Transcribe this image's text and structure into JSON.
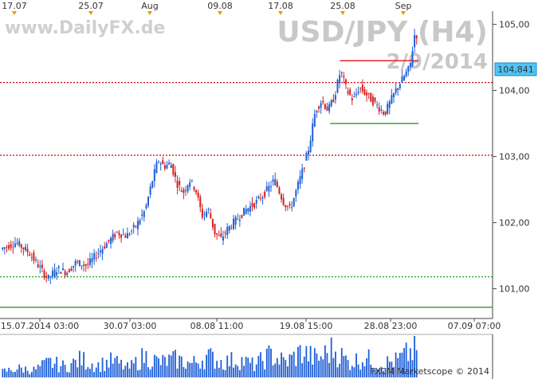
{
  "chart_data": {
    "type": "candlestick",
    "title": "USD/JPY (H4)",
    "subtitle": "2/9/2014",
    "watermark": "www.DailyFX.de",
    "copyright": "FXCM Marketscope © 2014",
    "top_axis_labels": [
      "17.07",
      "25.07",
      "Aug",
      "09.08",
      "17.08",
      "25.08",
      "Sep"
    ],
    "x_tick_labels": [
      "15.07.2014 03:00",
      "30.07 03:00",
      "08.08 11:00",
      "19.08 15:00",
      "28.08 23:00",
      "07.09 07:00"
    ],
    "y_ticks": [
      "105,00",
      "104,00",
      "103,00",
      "102,00",
      "101,00"
    ],
    "ylim": [
      100.55,
      105.2
    ],
    "last_price_label": "104,841",
    "last_price": 104.841,
    "horizontal_levels": [
      {
        "value": 104.12,
        "style": "dotted",
        "color": "#cc0000"
      },
      {
        "value": 103.02,
        "style": "dotted",
        "color": "#cc0000"
      },
      {
        "value": 101.18,
        "style": "dotted",
        "color": "#009900"
      },
      {
        "value": 100.72,
        "style": "solid",
        "color": "#339933"
      }
    ],
    "segments": [
      {
        "x_from": 0.69,
        "x_to": 0.89,
        "value": 104.45,
        "color": "#ee2222"
      },
      {
        "x_from": 0.67,
        "x_to": 0.89,
        "value": 103.5,
        "color": "#33aa33"
      }
    ],
    "path_points": [
      [
        0,
        101.6
      ],
      [
        10,
        101.7
      ],
      [
        18,
        101.55
      ],
      [
        24,
        101.35
      ],
      [
        30,
        101.15
      ],
      [
        36,
        101.3
      ],
      [
        42,
        101.25
      ],
      [
        48,
        101.4
      ],
      [
        55,
        101.35
      ],
      [
        62,
        101.55
      ],
      [
        68,
        101.7
      ],
      [
        74,
        101.85
      ],
      [
        80,
        101.8
      ],
      [
        86,
        101.95
      ],
      [
        92,
        102.2
      ],
      [
        96,
        102.6
      ],
      [
        100,
        102.95
      ],
      [
        104,
        102.85
      ],
      [
        108,
        102.9
      ],
      [
        112,
        102.6
      ],
      [
        116,
        102.45
      ],
      [
        120,
        102.65
      ],
      [
        124,
        102.5
      ],
      [
        128,
        102.1
      ],
      [
        132,
        102.2
      ],
      [
        136,
        101.85
      ],
      [
        140,
        101.75
      ],
      [
        144,
        101.9
      ],
      [
        150,
        102.05
      ],
      [
        156,
        102.2
      ],
      [
        162,
        102.3
      ],
      [
        168,
        102.45
      ],
      [
        174,
        102.65
      ],
      [
        180,
        102.3
      ],
      [
        184,
        102.2
      ],
      [
        188,
        102.5
      ],
      [
        192,
        102.8
      ],
      [
        196,
        103.15
      ],
      [
        200,
        103.7
      ],
      [
        204,
        103.85
      ],
      [
        208,
        103.7
      ],
      [
        212,
        103.9
      ],
      [
        216,
        104.3
      ],
      [
        220,
        104.0
      ],
      [
        224,
        103.85
      ],
      [
        228,
        104.05
      ],
      [
        232,
        103.95
      ],
      [
        236,
        103.85
      ],
      [
        240,
        103.75
      ],
      [
        244,
        103.65
      ],
      [
        248,
        103.85
      ],
      [
        252,
        104.05
      ],
      [
        256,
        104.2
      ],
      [
        260,
        104.35
      ],
      [
        263,
        104.84
      ]
    ],
    "path_x_range": [
      0,
      263
    ],
    "volume_profile": [
      [
        0,
        0.2
      ],
      [
        10,
        0.3
      ],
      [
        20,
        0.25
      ],
      [
        30,
        0.5
      ],
      [
        40,
        0.35
      ],
      [
        50,
        0.6
      ],
      [
        60,
        0.4
      ],
      [
        70,
        0.55
      ],
      [
        80,
        0.3
      ],
      [
        90,
        0.7
      ],
      [
        100,
        0.5
      ],
      [
        110,
        0.6
      ],
      [
        120,
        0.45
      ],
      [
        130,
        0.7
      ],
      [
        140,
        0.5
      ],
      [
        150,
        0.6
      ],
      [
        160,
        0.4
      ],
      [
        170,
        0.75
      ],
      [
        180,
        0.5
      ],
      [
        190,
        0.85
      ],
      [
        200,
        0.6
      ],
      [
        210,
        0.95
      ],
      [
        220,
        0.5
      ],
      [
        230,
        0.65
      ],
      [
        240,
        0.45
      ],
      [
        250,
        0.55
      ],
      [
        263,
        0.95
      ]
    ]
  }
}
